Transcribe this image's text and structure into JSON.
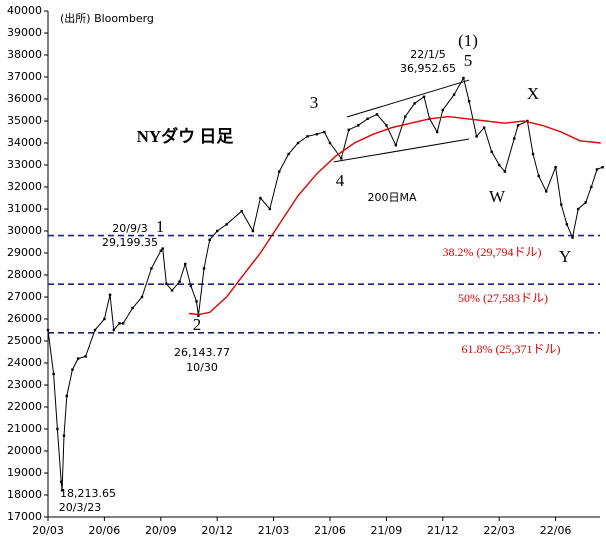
{
  "chart_data": {
    "type": "line",
    "title": "NYダウ 日足",
    "source": "(出所) Bloomberg",
    "xlim": [
      0,
      29.8
    ],
    "xticks": [
      {
        "value": 0,
        "label": "20/03"
      },
      {
        "value": 3,
        "label": "20/06"
      },
      {
        "value": 6,
        "label": "20/09"
      },
      {
        "value": 9,
        "label": "20/12"
      },
      {
        "value": 12,
        "label": "21/03"
      },
      {
        "value": 15,
        "label": "21/06"
      },
      {
        "value": 18,
        "label": "21/09"
      },
      {
        "value": 21,
        "label": "21/12"
      },
      {
        "value": 24,
        "label": "22/03"
      },
      {
        "value": 27,
        "label": "22/06"
      }
    ],
    "ylim": [
      17000,
      40000
    ],
    "yticks": [
      17000,
      18000,
      19000,
      20000,
      21000,
      22000,
      23000,
      24000,
      25000,
      26000,
      27000,
      28000,
      29000,
      30000,
      31000,
      32000,
      33000,
      34000,
      35000,
      36000,
      37000,
      38000,
      39000,
      40000
    ],
    "series": [
      {
        "color": "#000000",
        "x": [
          0,
          0.3,
          0.5,
          0.7,
          0.75,
          0.85,
          1,
          1.3,
          1.6,
          2,
          2.5,
          3,
          3.3,
          3.5,
          3.8,
          4,
          4.5,
          5,
          5.5,
          6,
          6.1,
          6.3,
          6.6,
          7,
          7.3,
          7.6,
          7.9,
          8.0,
          8.3,
          8.6,
          9,
          9.5,
          10.3,
          10.9,
          11.3,
          11.8,
          12.3,
          12.8,
          13.3,
          13.8,
          14.3,
          14.7,
          15,
          15.6,
          16,
          16.5,
          17,
          17.5,
          18,
          18.5,
          19,
          19.5,
          20,
          20.3,
          20.7,
          21,
          21.6,
          22.1,
          22.4,
          22.8,
          23.2,
          23.6,
          24,
          24.3,
          24.8,
          25,
          25.5,
          25.8,
          26.1,
          26.5,
          27,
          27.3,
          27.6,
          27.9,
          28.2,
          28.6,
          28.9,
          29.2,
          29.5
        ],
        "values": [
          25500,
          23500,
          21000,
          18600,
          18213.65,
          20700,
          22500,
          23700,
          24200,
          24300,
          25500,
          26000,
          27100,
          25500,
          25800,
          25800,
          26500,
          27000,
          28300,
          29100,
          29199.35,
          27600,
          27300,
          27700,
          28500,
          27500,
          26800,
          26143.77,
          28300,
          29600,
          30000,
          30300,
          30900,
          30000,
          31500,
          31000,
          32700,
          33500,
          34000,
          34300,
          34400,
          34500,
          34000,
          33300,
          34600,
          34800,
          35100,
          35300,
          34800,
          33900,
          35200,
          35800,
          36100,
          35100,
          34500,
          35500,
          36200,
          36952.65,
          35900,
          34300,
          34700,
          33600,
          33000,
          32700,
          34200,
          34800,
          35000,
          33500,
          32500,
          31800,
          32900,
          31200,
          30300,
          29700,
          31000,
          31300,
          32000,
          32800,
          32900
        ]
      },
      {
        "name": "200日MA",
        "color": "#e00000",
        "x": [
          7.5,
          8.0,
          8.6,
          9.5,
          10.3,
          11.3,
          12.3,
          13.3,
          14.3,
          15.3,
          16.3,
          17.3,
          18.3,
          19.3,
          20.3,
          21.3,
          22.3,
          23.3,
          24.3,
          25.3,
          26.3,
          27.3,
          28.3,
          29.4
        ],
        "values": [
          26250,
          26200,
          26300,
          27000,
          27900,
          29000,
          30300,
          31600,
          32600,
          33400,
          34000,
          34400,
          34700,
          34900,
          35100,
          35200,
          35100,
          35000,
          34900,
          35000,
          34800,
          34500,
          34100,
          34000
        ]
      }
    ],
    "levels": [
      {
        "value": 29794,
        "label": "38.2% (29,794ドル)"
      },
      {
        "value": 27583,
        "label": "50% (27,583ドル)"
      },
      {
        "value": 25371,
        "label": "61.8% (25,371ドル)"
      }
    ],
    "level_color": "#1a237e",
    "trend_lines": [
      {
        "x": [
          15.9,
          22.4
        ],
        "values": [
          35180,
          36860
        ]
      },
      {
        "x": [
          15.2,
          22.4
        ],
        "values": [
          33140,
          34180
        ]
      }
    ],
    "annotations": [
      "(1)",
      "5",
      "22/1/5",
      "36,952.65",
      "3",
      "4",
      "X",
      "W",
      "Y",
      "20/9/3",
      "1",
      "29,199.35",
      "2",
      "26,143.77",
      "10/30",
      "18,213.65",
      "20/3/23"
    ]
  }
}
